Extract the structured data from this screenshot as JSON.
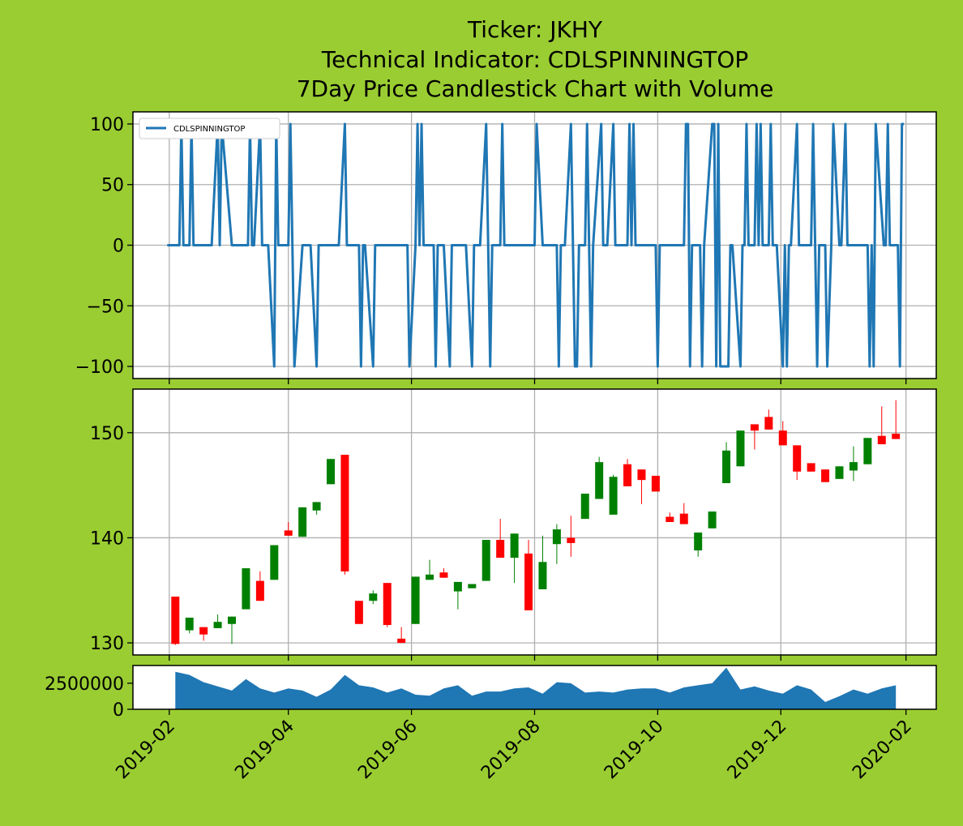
{
  "chart_data": [
    {
      "type": "line",
      "title": [
        "Ticker: JKHY",
        "Technical Indicator: CDLSPINNINGTOP",
        "7Day Price Candlestick Chart with Volume"
      ],
      "series": [
        {
          "name": "CDLSPINNINGTOP",
          "color": "#1f77b4",
          "x": [
            "2019-01-31",
            "2019-02-06",
            "2019-02-07",
            "2019-02-08",
            "2019-02-11",
            "2019-02-12",
            "2019-02-13",
            "2019-02-22",
            "2019-02-25",
            "2019-02-26",
            "2019-02-27",
            "2019-03-04",
            "2019-03-12",
            "2019-03-13",
            "2019-03-14",
            "2019-03-15",
            "2019-03-18",
            "2019-03-19",
            "2019-03-22",
            "2019-03-25",
            "2019-03-26",
            "2019-03-27",
            "2019-04-01",
            "2019-04-02",
            "2019-04-03",
            "2019-04-04",
            "2019-04-08",
            "2019-04-12",
            "2019-04-15",
            "2019-04-16",
            "2019-04-26",
            "2019-04-29",
            "2019-04-30",
            "2019-05-06",
            "2019-05-07",
            "2019-05-08",
            "2019-05-09",
            "2019-05-13",
            "2019-05-14",
            "2019-05-30",
            "2019-05-31",
            "2019-06-03",
            "2019-06-04",
            "2019-06-05",
            "2019-06-06",
            "2019-06-07",
            "2019-06-12",
            "2019-06-13",
            "2019-06-14",
            "2019-06-17",
            "2019-06-20",
            "2019-06-21",
            "2019-06-28",
            "2019-07-01",
            "2019-07-02",
            "2019-07-05",
            "2019-07-08",
            "2019-07-09",
            "2019-07-10",
            "2019-07-11",
            "2019-07-15",
            "2019-07-16",
            "2019-07-17",
            "2019-08-01",
            "2019-08-02",
            "2019-08-05",
            "2019-08-12",
            "2019-08-13",
            "2019-08-14",
            "2019-08-16",
            "2019-08-19",
            "2019-08-20",
            "2019-08-21",
            "2019-08-22",
            "2019-08-23",
            "2019-08-26",
            "2019-08-27",
            "2019-08-28",
            "2019-08-29",
            "2019-08-30",
            "2019-09-03",
            "2019-09-04",
            "2019-09-06",
            "2019-09-09",
            "2019-09-10",
            "2019-09-16",
            "2019-09-17",
            "2019-09-18",
            "2019-09-19",
            "2019-09-20",
            "2019-09-30",
            "2019-10-01",
            "2019-10-02",
            "2019-10-14",
            "2019-10-15",
            "2019-10-16",
            "2019-10-17",
            "2019-10-18",
            "2019-10-22",
            "2019-10-23",
            "2019-10-24",
            "2019-10-28",
            "2019-10-29",
            "2019-10-30",
            "2019-10-31",
            "2019-11-01",
            "2019-11-05",
            "2019-11-06",
            "2019-11-07",
            "2019-11-11",
            "2019-11-12",
            "2019-11-13",
            "2019-11-14",
            "2019-11-15",
            "2019-11-18",
            "2019-11-19",
            "2019-11-20",
            "2019-11-21",
            "2019-11-22",
            "2019-11-25",
            "2019-11-26",
            "2019-11-27",
            "2019-11-29",
            "2019-12-02",
            "2019-12-03",
            "2019-12-04",
            "2019-12-05",
            "2019-12-06",
            "2019-12-09",
            "2019-12-10",
            "2019-12-16",
            "2019-12-17",
            "2019-12-18",
            "2019-12-19",
            "2019-12-20",
            "2019-12-23",
            "2019-12-24",
            "2019-12-26",
            "2019-12-27",
            "2019-12-30",
            "2019-12-31",
            "2020-01-02",
            "2020-01-03",
            "2020-01-13",
            "2020-01-14",
            "2020-01-15",
            "2020-01-16",
            "2020-01-17",
            "2020-01-21",
            "2020-01-22",
            "2020-01-23",
            "2020-01-24",
            "2020-01-27",
            "2020-01-28",
            "2020-01-29",
            "2020-01-30",
            "2020-01-31"
          ],
          "values": [
            0,
            0,
            100,
            0,
            0,
            100,
            0,
            0,
            100,
            0,
            100,
            0,
            0,
            100,
            0,
            0,
            100,
            0,
            0,
            -100,
            100,
            0,
            0,
            100,
            0,
            -100,
            0,
            0,
            -100,
            0,
            0,
            100,
            0,
            0,
            -100,
            0,
            0,
            -100,
            0,
            0,
            -100,
            0,
            100,
            0,
            100,
            0,
            0,
            -100,
            0,
            0,
            -100,
            0,
            0,
            -100,
            0,
            0,
            100,
            0,
            -100,
            0,
            0,
            100,
            0,
            0,
            100,
            0,
            0,
            -100,
            0,
            0,
            100,
            0,
            -100,
            -100,
            0,
            0,
            100,
            0,
            -100,
            0,
            100,
            0,
            0,
            100,
            0,
            0,
            100,
            0,
            100,
            0,
            0,
            -100,
            0,
            0,
            100,
            100,
            -100,
            0,
            0,
            -100,
            0,
            100,
            100,
            -100,
            100,
            -100,
            -100,
            0,
            0,
            -100,
            0,
            0,
            100,
            0,
            0,
            100,
            0,
            100,
            0,
            0,
            100,
            0,
            0,
            -100,
            0,
            -100,
            0,
            0,
            100,
            0,
            0,
            100,
            0,
            -100,
            0,
            0,
            -100,
            0,
            100,
            0,
            0,
            100,
            0,
            0,
            -100,
            0,
            -100,
            100,
            0,
            0,
            100,
            0,
            0,
            0,
            -100,
            100,
            100
          ]
        }
      ],
      "xlim": [
        "2019-01-14",
        "2020-02-16"
      ],
      "xticks": [
        "2019-02-01",
        "2019-04-01",
        "2019-06-01",
        "2019-08-01",
        "2019-10-01",
        "2019-12-01",
        "2020-02-01"
      ],
      "ylim": [
        -110,
        110
      ],
      "yticks": [
        {
          "value": -100,
          "label": "−100"
        },
        {
          "value": -50,
          "label": "−50"
        },
        0,
        50,
        100
      ],
      "grid": true,
      "legend": "upper left"
    },
    {
      "type": "candlestick",
      "x": [
        "2019-02-04",
        "2019-02-11",
        "2019-02-18",
        "2019-02-25",
        "2019-03-04",
        "2019-03-11",
        "2019-03-18",
        "2019-03-25",
        "2019-04-01",
        "2019-04-08",
        "2019-04-15",
        "2019-04-22",
        "2019-04-29",
        "2019-05-06",
        "2019-05-13",
        "2019-05-20",
        "2019-05-27",
        "2019-06-03",
        "2019-06-10",
        "2019-06-17",
        "2019-06-24",
        "2019-07-01",
        "2019-07-08",
        "2019-07-15",
        "2019-07-22",
        "2019-07-29",
        "2019-08-05",
        "2019-08-12",
        "2019-08-19",
        "2019-08-26",
        "2019-09-02",
        "2019-09-09",
        "2019-09-16",
        "2019-09-23",
        "2019-09-30",
        "2019-10-07",
        "2019-10-14",
        "2019-10-21",
        "2019-10-28",
        "2019-11-04",
        "2019-11-11",
        "2019-11-18",
        "2019-11-25",
        "2019-12-02",
        "2019-12-09",
        "2019-12-16",
        "2019-12-23",
        "2019-12-30",
        "2020-01-06",
        "2020-01-13",
        "2020-01-20",
        "2020-01-27"
      ],
      "open": [
        134.4,
        131.2,
        131.5,
        131.4,
        131.8,
        133.2,
        135.9,
        136.0,
        140.7,
        140.1,
        142.6,
        145.1,
        147.9,
        134.0,
        134.0,
        135.7,
        130.4,
        131.8,
        136.0,
        136.7,
        134.9,
        135.2,
        135.9,
        139.8,
        138.1,
        138.5,
        135.1,
        139.4,
        140.0,
        141.8,
        143.7,
        142.2,
        147.0,
        146.5,
        145.9,
        142.0,
        142.3,
        138.8,
        140.9,
        145.2,
        146.8,
        150.8,
        151.5,
        150.2,
        148.8,
        147.1,
        146.5,
        145.6,
        146.4,
        147.0,
        149.7,
        149.9
      ],
      "high": [
        134.4,
        132.4,
        131.5,
        132.7,
        132.5,
        137.1,
        136.8,
        139.3,
        141.5,
        142.9,
        143.4,
        147.5,
        147.9,
        134.0,
        135.0,
        135.7,
        131.5,
        136.3,
        137.9,
        137.1,
        135.8,
        135.6,
        139.8,
        141.8,
        140.4,
        139.8,
        140.2,
        141.3,
        142.1,
        144.2,
        147.7,
        146.0,
        147.5,
        146.5,
        145.9,
        142.4,
        143.3,
        140.5,
        142.5,
        149.1,
        150.2,
        150.8,
        152.2,
        151.1,
        148.8,
        147.1,
        146.5,
        146.8,
        148.7,
        149.5,
        152.5,
        153.1
      ],
      "low": [
        129.8,
        130.9,
        130.2,
        131.4,
        129.9,
        133.2,
        134.0,
        136.0,
        140.2,
        140.1,
        142.2,
        145.1,
        136.5,
        131.8,
        133.7,
        131.5,
        130.0,
        131.8,
        136.0,
        136.2,
        133.2,
        135.2,
        135.9,
        138.1,
        135.7,
        133.1,
        135.1,
        137.5,
        138.2,
        141.8,
        143.7,
        142.2,
        144.9,
        143.2,
        144.4,
        141.5,
        141.3,
        138.2,
        140.9,
        145.2,
        146.8,
        148.4,
        150.3,
        148.8,
        145.5,
        146.3,
        145.3,
        145.6,
        145.4,
        147.0,
        148.9,
        149.4
      ],
      "close": [
        129.9,
        132.4,
        130.8,
        132.0,
        132.5,
        137.1,
        134.0,
        139.3,
        140.2,
        142.9,
        143.4,
        147.5,
        136.8,
        131.8,
        134.7,
        131.7,
        130.0,
        136.3,
        136.5,
        136.2,
        135.8,
        135.6,
        139.8,
        138.1,
        140.4,
        133.1,
        137.7,
        140.8,
        139.5,
        144.2,
        147.2,
        145.8,
        144.9,
        145.5,
        144.4,
        141.5,
        141.3,
        140.5,
        142.5,
        148.3,
        150.2,
        150.2,
        150.3,
        148.8,
        146.3,
        146.3,
        145.3,
        146.8,
        147.2,
        149.5,
        148.9,
        149.4
      ],
      "up_color": "green",
      "down_color": "red",
      "xlim": [
        "2019-01-14",
        "2020-02-16"
      ],
      "xticks": [
        "2019-02-01",
        "2019-04-01",
        "2019-06-01",
        "2019-08-01",
        "2019-10-01",
        "2019-12-01",
        "2020-02-01"
      ],
      "ylim": [
        128.85,
        154.15
      ],
      "yticks": [
        130,
        140,
        150
      ],
      "grid": true
    },
    {
      "type": "area",
      "color": "#1f77b4",
      "x": [
        "2019-02-04",
        "2019-02-11",
        "2019-02-18",
        "2019-02-25",
        "2019-03-04",
        "2019-03-11",
        "2019-03-18",
        "2019-03-25",
        "2019-04-01",
        "2019-04-08",
        "2019-04-15",
        "2019-04-22",
        "2019-04-29",
        "2019-05-06",
        "2019-05-13",
        "2019-05-20",
        "2019-05-27",
        "2019-06-03",
        "2019-06-10",
        "2019-06-17",
        "2019-06-24",
        "2019-07-01",
        "2019-07-08",
        "2019-07-15",
        "2019-07-22",
        "2019-07-29",
        "2019-08-05",
        "2019-08-12",
        "2019-08-19",
        "2019-08-26",
        "2019-09-02",
        "2019-09-09",
        "2019-09-16",
        "2019-09-23",
        "2019-09-30",
        "2019-10-07",
        "2019-10-14",
        "2019-10-21",
        "2019-10-28",
        "2019-11-04",
        "2019-11-11",
        "2019-11-18",
        "2019-11-25",
        "2019-12-02",
        "2019-12-09",
        "2019-12-16",
        "2019-12-23",
        "2019-12-30",
        "2020-01-06",
        "2020-01-13",
        "2020-01-20",
        "2020-01-27"
      ],
      "values": [
        3600000,
        3300000,
        2600000,
        2200000,
        1800000,
        2900000,
        2000000,
        1600000,
        2000000,
        1800000,
        1200000,
        1900000,
        3300000,
        2300000,
        2100000,
        1600000,
        2000000,
        1400000,
        1300000,
        2000000,
        2300000,
        1300000,
        1700000,
        1700000,
        2000000,
        2100000,
        1500000,
        2600000,
        2500000,
        1600000,
        1700000,
        1600000,
        1900000,
        2000000,
        2000000,
        1600000,
        2100000,
        2300000,
        2500000,
        4000000,
        1900000,
        2200000,
        1800000,
        1500000,
        2300000,
        1900000,
        700000,
        1250000,
        1900000,
        1500000,
        2000000,
        2300000
      ],
      "xlim": [
        "2019-01-14",
        "2020-02-16"
      ],
      "xticks": [
        {
          "value": "2019-02-01",
          "label": "2019-02"
        },
        {
          "value": "2019-04-01",
          "label": "2019-04"
        },
        {
          "value": "2019-06-01",
          "label": "2019-06"
        },
        {
          "value": "2019-08-01",
          "label": "2019-08"
        },
        {
          "value": "2019-10-01",
          "label": "2019-10"
        },
        {
          "value": "2019-12-01",
          "label": "2019-12"
        },
        {
          "value": "2020-02-01",
          "label": "2020-02"
        }
      ],
      "ylim": [
        0,
        4200000
      ],
      "yticks": [
        0,
        2500000
      ],
      "grid": false
    }
  ]
}
